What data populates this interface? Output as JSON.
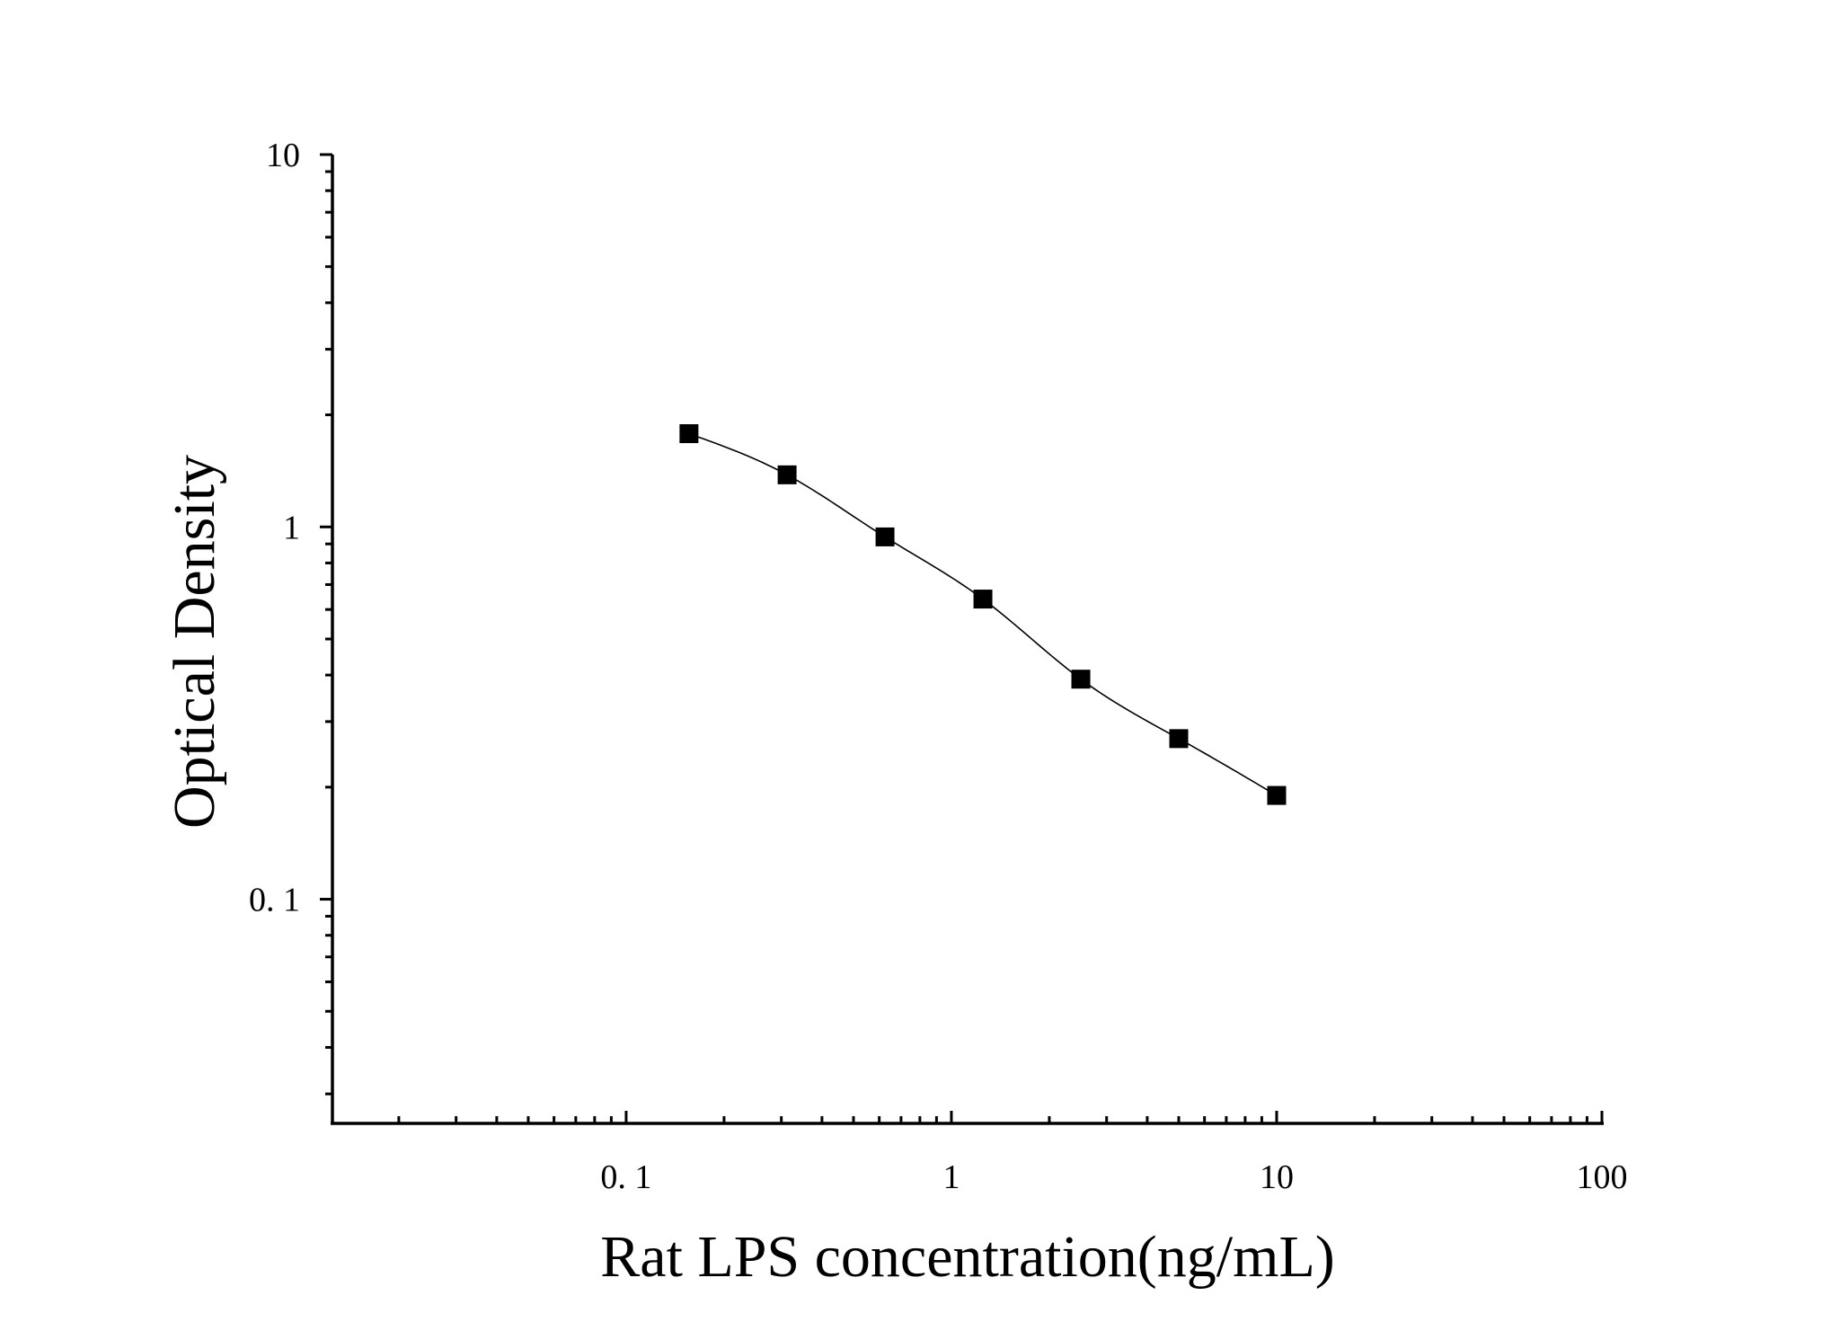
{
  "chart_data": {
    "type": "scatter",
    "xlabel": "Rat LPS concentration(ng/mL)",
    "ylabel": "Optical Density",
    "x_scale": "log",
    "y_scale": "log",
    "xlim": [
      0.0125,
      100
    ],
    "ylim": [
      0.025,
      10
    ],
    "x_ticks": [
      0.1,
      1,
      10,
      100
    ],
    "x_tick_labels": [
      "0. 1",
      "1",
      "10",
      "100"
    ],
    "y_ticks": [
      0.1,
      1,
      10
    ],
    "y_tick_labels": [
      "0. 1",
      "1",
      "10"
    ],
    "grid": false,
    "legend": "none",
    "series": [
      {
        "marker": "square",
        "fit_line": true,
        "x": [
          0.156,
          0.3125,
          0.625,
          1.25,
          2.5,
          5,
          10
        ],
        "y": [
          1.78,
          1.38,
          0.94,
          0.64,
          0.39,
          0.27,
          0.19
        ]
      }
    ]
  }
}
